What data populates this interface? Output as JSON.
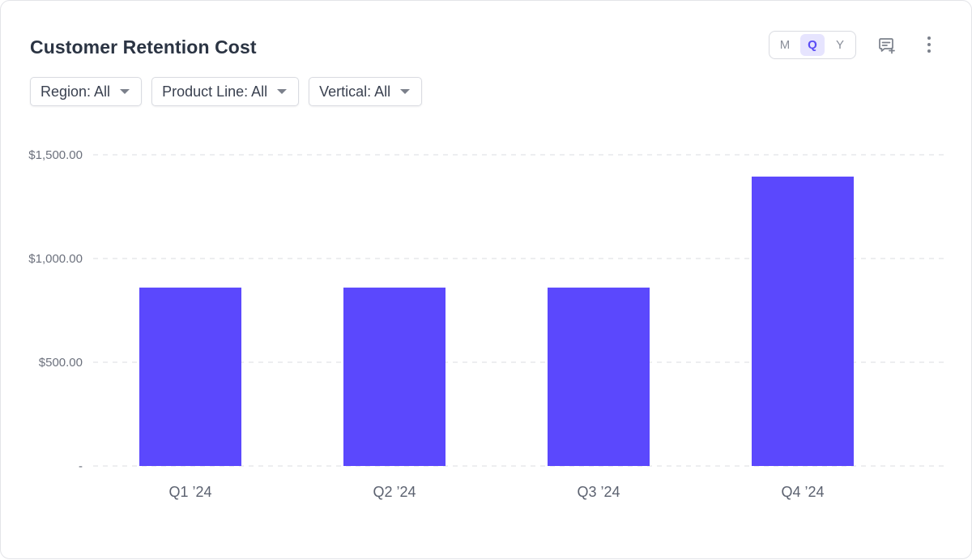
{
  "card": {
    "title": "Customer Retention Cost"
  },
  "period_toggle": {
    "options": [
      "M",
      "Q",
      "Y"
    ],
    "selected": "Q"
  },
  "icons": {
    "comment": "add-comment-icon",
    "more": "more-vertical-icon"
  },
  "filters": [
    {
      "label": "Region: All"
    },
    {
      "label": "Product Line: All"
    },
    {
      "label": "Vertical: All"
    }
  ],
  "colors": {
    "bar": "#5b48fd",
    "accent": "#5a4cf5",
    "grid": "#e2e3e8"
  },
  "chart_data": {
    "type": "bar",
    "title": "Customer Retention Cost",
    "xlabel": "",
    "ylabel": "",
    "categories": [
      "Q1 ’24",
      "Q2 ’24",
      "Q3 ’24",
      "Q4 ’24"
    ],
    "values": [
      860,
      860,
      860,
      1395
    ],
    "ylim": [
      0,
      1500
    ],
    "yticks": [
      {
        "value": 0,
        "label": "-"
      },
      {
        "value": 500,
        "label": "$500.00"
      },
      {
        "value": 1000,
        "label": "$1,000.00"
      },
      {
        "value": 1500,
        "label": "$1,500.00"
      }
    ],
    "grid": true,
    "legend": "none"
  }
}
